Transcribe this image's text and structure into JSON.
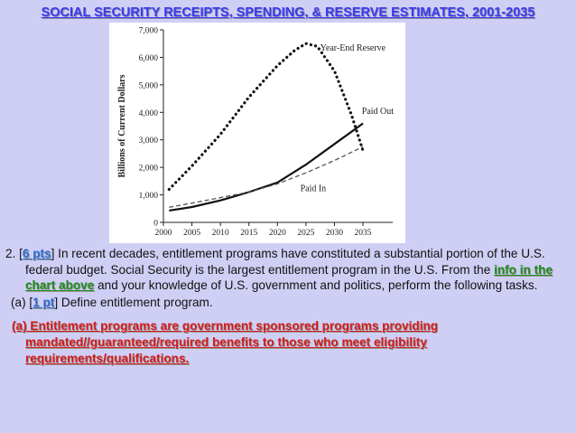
{
  "slide": {
    "title": "SOCIAL SECURITY RECEIPTS, SPENDING, & RESERVE ESTIMATES, 2001-2035",
    "q_number": "2. [",
    "q_points": "6 pts",
    "q_text1": "] In recent decades, entitlement programs have constituted a substantial portion of the U.S. federal budget.   Social Security is the largest entitlement program in the U.S. From the ",
    "q_highlight": "info in the chart above",
    "q_text2": " and your knowledge of  U.S. government and politics, perform the following tasks.",
    "sub_prefix": "(a) [",
    "sub_points": "1 pt",
    "sub_text": "] Define entitlement program.",
    "answer": "(a) Entitlement programs are government sponsored programs providing mandated//guaranteed/required benefits to those who meet eligibility requirements/qualifications."
  },
  "chart_data": {
    "type": "line",
    "ylabel": "Billions of Current Dollars",
    "xlabel": "",
    "xlim": [
      2000,
      2038
    ],
    "ylim": [
      0,
      7000
    ],
    "x_ticks": [
      2000,
      2005,
      2010,
      2015,
      2020,
      2025,
      2030,
      2035
    ],
    "y_ticks": [
      0,
      1000,
      2000,
      3000,
      4000,
      5000,
      6000,
      7000
    ],
    "y_tick_labels": [
      "0",
      "1,000",
      "2,000",
      "3,000",
      "4,000",
      "5,000",
      "6,000",
      "7,000"
    ],
    "series": [
      {
        "name": "Year-End Reserve",
        "style": "dotted",
        "color": "#111111",
        "x": [
          2001,
          2005,
          2010,
          2015,
          2020,
          2023,
          2025,
          2027,
          2030,
          2033,
          2035
        ],
        "y": [
          1200,
          2050,
          3200,
          4550,
          5700,
          6250,
          6500,
          6400,
          5500,
          3900,
          2600
        ]
      },
      {
        "name": "Paid Out",
        "style": "solid",
        "color": "#111111",
        "x": [
          2001,
          2005,
          2010,
          2015,
          2020,
          2025,
          2030,
          2035
        ],
        "y": [
          430,
          560,
          800,
          1100,
          1450,
          2100,
          2850,
          3600
        ]
      },
      {
        "name": "Paid In",
        "style": "dashed",
        "color": "#555555",
        "x": [
          2001,
          2005,
          2010,
          2015,
          2020,
          2025,
          2030,
          2035
        ],
        "y": [
          550,
          700,
          900,
          1100,
          1400,
          1800,
          2250,
          2750
        ]
      }
    ]
  }
}
